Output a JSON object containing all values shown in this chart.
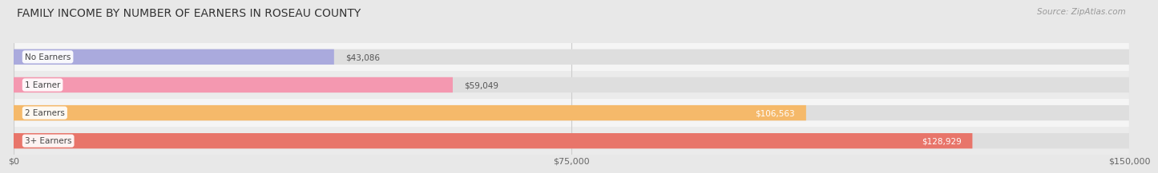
{
  "title": "FAMILY INCOME BY NUMBER OF EARNERS IN ROSEAU COUNTY",
  "source": "Source: ZipAtlas.com",
  "categories": [
    "No Earners",
    "1 Earner",
    "2 Earners",
    "3+ Earners"
  ],
  "values": [
    43086,
    59049,
    106563,
    128929
  ],
  "bar_colors": [
    "#aaaadd",
    "#f498b0",
    "#f5b96a",
    "#e8756a"
  ],
  "xlim": [
    0,
    150000
  ],
  "xticks": [
    0,
    75000,
    150000
  ],
  "xtick_labels": [
    "$0",
    "$75,000",
    "$150,000"
  ],
  "value_labels": [
    "$43,086",
    "$59,049",
    "$106,563",
    "$128,929"
  ],
  "background_color": "#e8e8e8",
  "row_bg_even": "#f5f5f5",
  "row_bg_odd": "#ebebeb",
  "bar_track_color": "#dedede",
  "title_fontsize": 10,
  "source_fontsize": 7.5
}
